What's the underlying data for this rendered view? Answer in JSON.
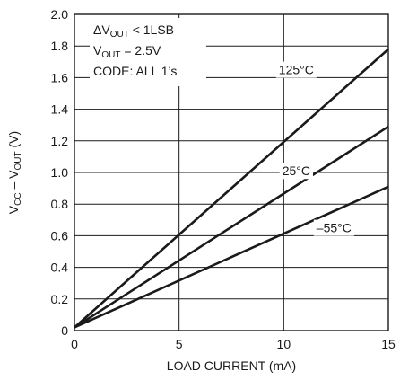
{
  "chart_data": {
    "type": "line",
    "xlabel": "LOAD CURRENT (mA)",
    "ylabel": {
      "parts": [
        {
          "text": "V",
          "sub": false
        },
        {
          "text": "CC",
          "sub": true
        },
        {
          "text": " – V",
          "sub": false
        },
        {
          "text": "OUT",
          "sub": true
        },
        {
          "text": " (V)",
          "sub": false
        }
      ]
    },
    "xlim": [
      0,
      15
    ],
    "ylim": [
      0,
      2.0
    ],
    "xticks": [
      "0",
      "5",
      "10",
      "15"
    ],
    "yticks": [
      "0",
      "0.2",
      "0.4",
      "0.6",
      "0.8",
      "1.0",
      "1.2",
      "1.4",
      "1.6",
      "1.8",
      "2.0"
    ],
    "xtick_values": [
      0,
      5,
      10,
      15
    ],
    "ytick_values": [
      0,
      0.2,
      0.4,
      0.6,
      0.8,
      1.0,
      1.2,
      1.4,
      1.6,
      1.8,
      2.0
    ],
    "grid": true,
    "series": [
      {
        "name": "125°C",
        "x": [
          0,
          15
        ],
        "y": [
          0.02,
          1.78
        ],
        "label_at": [
          10.6,
          1.65
        ]
      },
      {
        "name": "25°C",
        "x": [
          0,
          15
        ],
        "y": [
          0.02,
          1.29
        ],
        "label_at": [
          10.6,
          1.01
        ]
      },
      {
        "name": "–55°C",
        "x": [
          0,
          15
        ],
        "y": [
          0.02,
          0.91
        ],
        "label_at": [
          12.4,
          0.65
        ]
      }
    ],
    "annotation": {
      "lines": [
        [
          {
            "text": "ΔV",
            "sub": false
          },
          {
            "text": "OUT",
            "sub": true
          },
          {
            "text": " < 1LSB",
            "sub": false
          }
        ],
        [
          {
            "text": "V",
            "sub": false
          },
          {
            "text": "OUT",
            "sub": true
          },
          {
            "text": " = 2.5V",
            "sub": false
          }
        ],
        [
          {
            "text": "CODE: ALL 1’s",
            "sub": false
          }
        ]
      ]
    }
  }
}
